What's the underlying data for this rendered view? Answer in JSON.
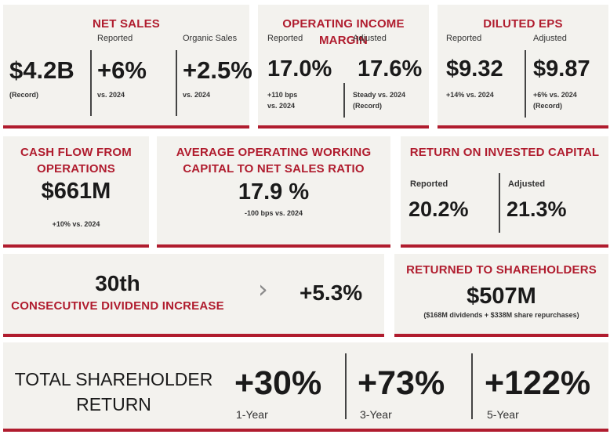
{
  "net_sales": {
    "title": "NET SALES",
    "value": "$4.2B",
    "value_note": "(Record)",
    "reported_label": "Reported",
    "reported_value": "+6%",
    "reported_note": "vs. 2024",
    "organic_label": "Organic Sales",
    "organic_value": "+2.5%",
    "organic_note": "vs. 2024"
  },
  "operating_income_margin": {
    "title": "OPERATING INCOME MARGIN",
    "reported_label": "Reported",
    "reported_value": "17.0%",
    "reported_note_1": "+110 bps",
    "reported_note_2": "vs. 2024",
    "adjusted_label": "Adjusted",
    "adjusted_value": "17.6%",
    "adjusted_note_1": "Steady vs. 2024",
    "adjusted_note_2": "(Record)"
  },
  "diluted_eps": {
    "title": "DILUTED EPS",
    "reported_label": "Reported",
    "reported_value": "$9.32",
    "reported_note": "+14% vs. 2024",
    "adjusted_label": "Adjusted",
    "adjusted_value": "$9.87",
    "adjusted_note_1": "+6% vs. 2024",
    "adjusted_note_2": "(Record)"
  },
  "cash_flow": {
    "title_1": "CASH FLOW FROM",
    "title_2": "OPERATIONS",
    "value": "$661M",
    "note": "+10% vs. 2024"
  },
  "working_capital": {
    "title_1": "AVERAGE OPERATING WORKING",
    "title_2": "CAPITAL TO NET SALES RATIO",
    "value": "17.9 %",
    "note": "-100 bps vs. 2024"
  },
  "roic": {
    "title": "RETURN ON INVESTED CAPITAL",
    "reported_label": "Reported",
    "reported_value": "20.2%",
    "adjusted_label": "Adjusted",
    "adjusted_value": "21.3%"
  },
  "dividend": {
    "count": "30th",
    "label": "CONSECUTIVE DIVIDEND INCREASE",
    "arrow": "›",
    "increase": "+5.3%"
  },
  "returned": {
    "title": "RETURNED TO SHAREHOLDERS",
    "value": "$507M",
    "note": "($168M dividends + $338M share repurchases)"
  },
  "tsr": {
    "title_1": "TOTAL SHAREHOLDER",
    "title_2": "RETURN",
    "periods": [
      {
        "value": "+30%",
        "label": "1-Year"
      },
      {
        "value": "+73%",
        "label": "3-Year"
      },
      {
        "value": "+122%",
        "label": "5-Year"
      }
    ]
  },
  "colors": {
    "accent": "#b01c2e",
    "card_bg": "#f3f2ee",
    "text": "#1a1a1a"
  }
}
